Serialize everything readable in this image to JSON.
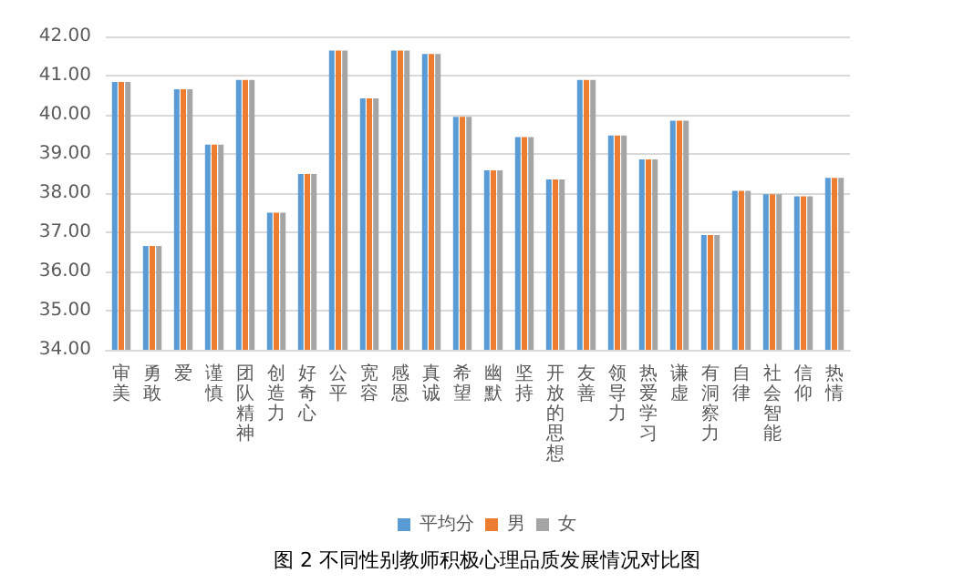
{
  "chart_data": {
    "type": "bar",
    "title": "图 2 不同性别教师积极心理品质发展情况对比图",
    "categories": [
      "审美",
      "勇敢",
      "爱",
      "谨慎",
      "团队精神",
      "创造力",
      "好奇心",
      "公平",
      "宽容",
      "感恩",
      "真诚",
      "希望",
      "幽默",
      "坚持",
      "开放的思想",
      "友善",
      "领导力",
      "热爱学习",
      "谦虚",
      "有洞察力",
      "自律",
      "社会智能",
      "信仰",
      "热情"
    ],
    "series": [
      {
        "name": "平均分",
        "color": "#5b9bd5",
        "values": [
          40.84,
          36.65,
          40.65,
          39.24,
          40.89,
          37.5,
          38.49,
          41.64,
          40.42,
          41.64,
          41.55,
          39.95,
          38.58,
          39.43,
          38.35,
          40.89,
          39.47,
          38.86,
          39.85,
          36.93,
          38.06,
          37.97,
          37.92,
          38.39
        ]
      },
      {
        "name": "男",
        "color": "#ed7d31",
        "values": [
          40.84,
          36.65,
          40.65,
          39.24,
          40.89,
          37.5,
          38.49,
          41.64,
          40.42,
          41.64,
          41.55,
          39.95,
          38.58,
          39.43,
          38.35,
          40.89,
          39.47,
          38.86,
          39.85,
          36.93,
          38.06,
          37.97,
          37.92,
          38.39
        ]
      },
      {
        "name": "女",
        "color": "#a5a5a5",
        "values": [
          40.84,
          36.65,
          40.65,
          39.24,
          40.89,
          37.5,
          38.49,
          41.64,
          40.42,
          41.64,
          41.55,
          39.95,
          38.58,
          39.43,
          38.35,
          40.89,
          39.47,
          38.86,
          39.85,
          36.93,
          38.06,
          37.97,
          37.92,
          38.39
        ]
      }
    ],
    "ylim": [
      34,
      42
    ],
    "yticks": [
      {
        "value": 34,
        "label": "34.00"
      },
      {
        "value": 35,
        "label": "35.00"
      },
      {
        "value": 36,
        "label": "36.00"
      },
      {
        "value": 37,
        "label": "37.00"
      },
      {
        "value": 38,
        "label": "38.00"
      },
      {
        "value": 39,
        "label": "39.00"
      },
      {
        "value": 40,
        "label": "40.00"
      },
      {
        "value": 41,
        "label": "41.00"
      },
      {
        "value": 42,
        "label": "42.00"
      }
    ],
    "grid": "y",
    "legend": "bottom"
  }
}
